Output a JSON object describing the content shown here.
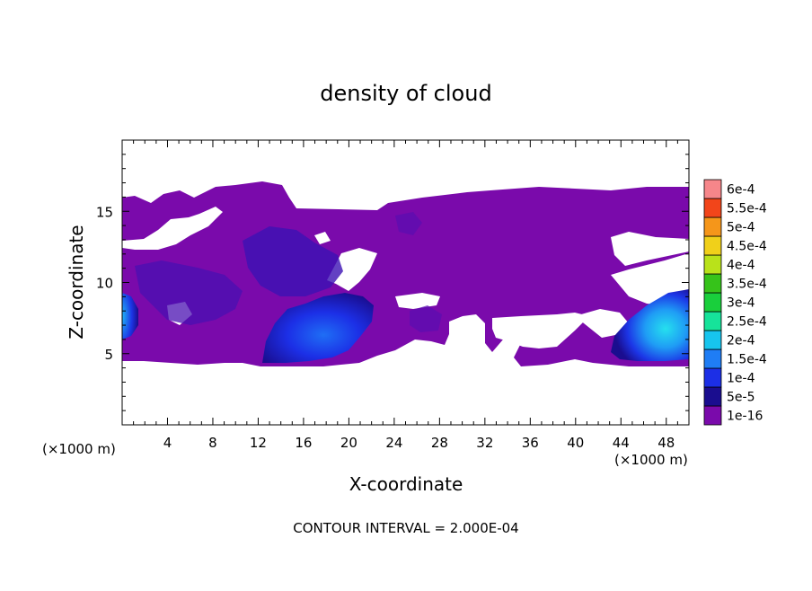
{
  "chart_data": {
    "type": "heatmap",
    "title": "density of cloud",
    "xlabel": "X-coordinate",
    "ylabel": "Z-coordinate",
    "x_unit": "(×1000 m)",
    "y_unit": "(×1000 m)",
    "xlim": [
      0,
      50
    ],
    "ylim": [
      0,
      20
    ],
    "x_ticks": [
      4,
      8,
      12,
      16,
      20,
      24,
      28,
      32,
      36,
      40,
      44,
      48
    ],
    "y_ticks": [
      5,
      10,
      15
    ],
    "contour_interval_text": "CONTOUR INTERVAL = 2.000E-04",
    "colorbar": {
      "levels": [
        "1e-16",
        "5e-5",
        "1e-4",
        "1.5e-4",
        "2e-4",
        "2.5e-4",
        "3e-4",
        "3.5e-4",
        "4e-4",
        "4.5e-4",
        "5e-4",
        "5.5e-4",
        "6e-4"
      ],
      "colors": [
        "#7a0aab",
        "#1a0d8f",
        "#1c2fe6",
        "#1f7df5",
        "#17c5ee",
        "#16e39a",
        "#19cf3c",
        "#36c31a",
        "#b9e21a",
        "#f0d01a",
        "#f5961a",
        "#f2451a",
        "#f6868a"
      ]
    },
    "regions": [
      {
        "level": "1e-16",
        "x_range": [
          0,
          50
        ],
        "z_range": [
          4.2,
          16.7
        ],
        "description": "main cloud layer"
      },
      {
        "level": "1e-4",
        "x_range": [
          12,
          22
        ],
        "z_range": [
          4.6,
          9.0
        ],
        "description": "dense core near x=12-22"
      },
      {
        "level": "1.5e-4",
        "x_range": [
          44,
          50
        ],
        "z_range": [
          5.0,
          9.5
        ],
        "description": "dense core near x=44-50"
      },
      {
        "level": "1e-4",
        "x_range": [
          0,
          1
        ],
        "z_range": [
          6.5,
          9.0
        ],
        "description": "edge core at x=0"
      }
    ]
  }
}
